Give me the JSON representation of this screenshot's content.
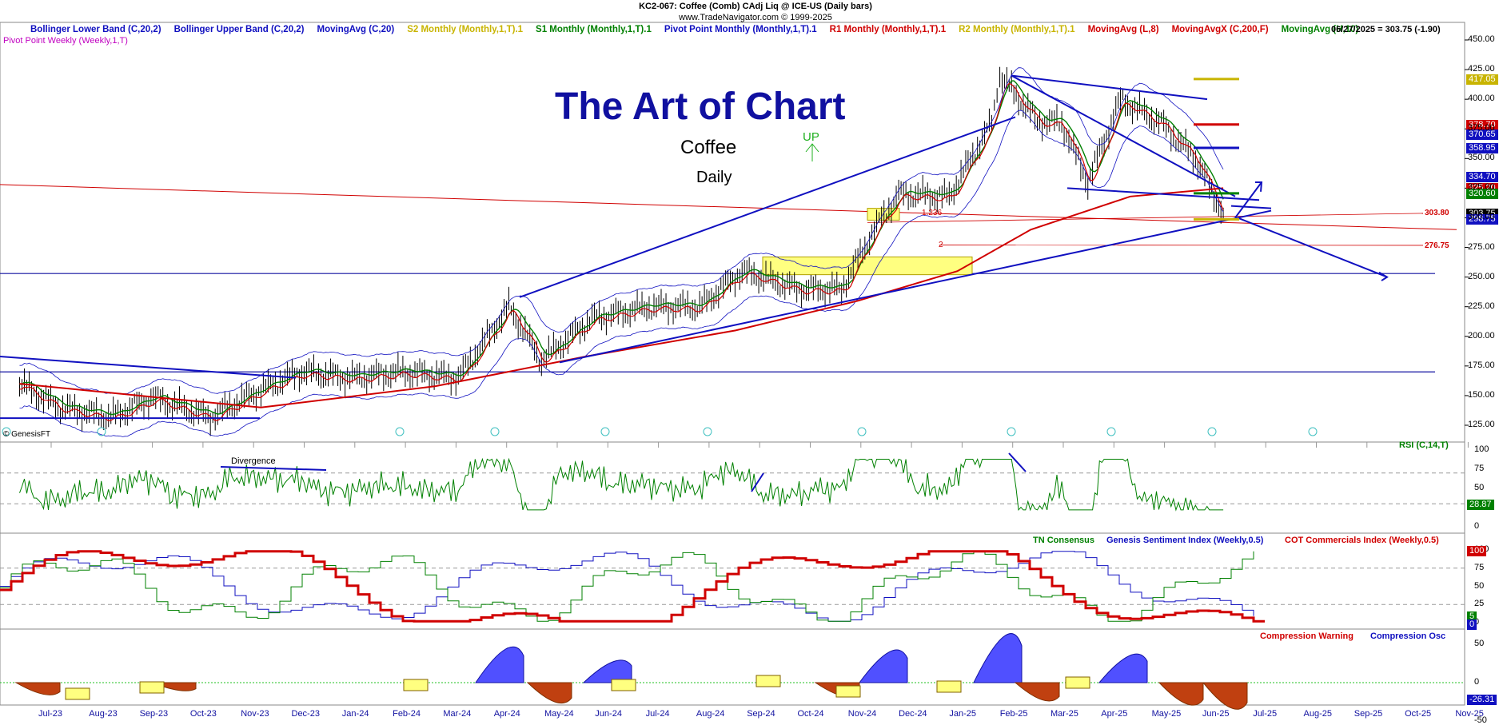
{
  "header": {
    "line1": "KC2-067:  Coffee (Comb) CAdj Liq @ ICE-US  (Daily bars)",
    "line2": "www.TradeNavigator.com © 1999-2025",
    "quote": "06/27/2025 = 303.75 (-1.90)"
  },
  "indicators": [
    {
      "label": "Bollinger Lower Band (C,20,2)",
      "color": "#1010c0"
    },
    {
      "label": "Bollinger Upper Band (C,20,2)",
      "color": "#1010c0"
    },
    {
      "label": "MovingAvg (C,20)",
      "color": "#1010c0"
    },
    {
      "label": "S2 Monthly (Monthly,1,T).1",
      "color": "#c8b400"
    },
    {
      "label": "S1 Monthly (Monthly,1,T).1",
      "color": "#008000"
    },
    {
      "label": "Pivot Point Monthly (Monthly,1,T).1",
      "color": "#1010c0"
    },
    {
      "label": "R1 Monthly (Monthly,1,T).1",
      "color": "#d00000"
    },
    {
      "label": "R2 Monthly (Monthly,1,T).1",
      "color": "#c8b400"
    },
    {
      "label": "MovingAvg (L,8)",
      "color": "#d00000"
    },
    {
      "label": "MovingAvgX (C,200,F)",
      "color": "#d00000"
    },
    {
      "label": "MovingAvg (H,10)",
      "color": "#008000"
    }
  ],
  "indicator_row2": {
    "label": "Pivot Point Weekly (Weekly,1,T)",
    "color": "#c000c0"
  },
  "title": "The Art of Chart",
  "subtitle": "Coffee",
  "timeframe": "Daily",
  "annotations": {
    "up": "UP",
    "divergence": "Divergence",
    "copyright": "© GenesisFT",
    "fib_1236": "1.236",
    "fib_2": "2",
    "line_303": "303.80",
    "line_276": "276.75"
  },
  "price_badges": [
    {
      "text": "417.05",
      "bg": "#c8b400",
      "fg": "#fff"
    },
    {
      "text": "378.70",
      "bg": "#d00000",
      "fg": "#fff"
    },
    {
      "text": "370.65",
      "bg": "#1010c0",
      "fg": "#fff"
    },
    {
      "text": "358.95",
      "bg": "#1010c0",
      "fg": "#fff"
    },
    {
      "text": "334.70",
      "bg": "#1010c0",
      "fg": "#fff"
    },
    {
      "text": "325.20",
      "bg": "#d00000",
      "fg": "#fff"
    },
    {
      "text": "320.60",
      "bg": "#008000",
      "fg": "#fff"
    },
    {
      "text": "303.75",
      "bg": "#000000",
      "fg": "#fff"
    },
    {
      "text": "298.75",
      "bg": "#1010c0",
      "fg": "#fff"
    }
  ],
  "panels": {
    "rsi": {
      "label": "RSI (C,14,T)",
      "value": "28.87",
      "color": "#008000"
    },
    "sentiment": {
      "labels": [
        {
          "text": "TN Consensus",
          "color": "#008000"
        },
        {
          "text": "Genesis Sentiment Index (Weekly,0.5)",
          "color": "#1010c0"
        },
        {
          "text": "COT Commercials Index (Weekly,0.5)",
          "color": "#d00000"
        }
      ],
      "value_red": "100",
      "value_green": "5",
      "value_blue": "0"
    },
    "compression": {
      "labels": [
        {
          "text": "Compression Warning",
          "color": "#d00000"
        },
        {
          "text": "Compression Osc",
          "color": "#1010c0"
        }
      ],
      "value": "-26.31"
    }
  },
  "chart_data": {
    "type": "candlestick",
    "symbol": "KC2-067",
    "x_tick_labels": [
      "Jul-23",
      "Aug-23",
      "Sep-23",
      "Oct-23",
      "Nov-23",
      "Dec-23",
      "Jan-24",
      "Feb-24",
      "Mar-24",
      "Apr-24",
      "May-24",
      "Jun-24",
      "Jul-24",
      "Aug-24",
      "Sep-24",
      "Oct-24",
      "Nov-24",
      "Dec-24",
      "Jan-25",
      "Feb-25",
      "Mar-25",
      "Apr-25",
      "May-25",
      "Jun-25",
      "Jul-25",
      "Aug-25",
      "Sep-25",
      "Oct-25",
      "Nov-25"
    ],
    "price_ticks": [
      450,
      425,
      400,
      375,
      350,
      325,
      300,
      275,
      250,
      225,
      200,
      175,
      150,
      125
    ],
    "price_ylim": [
      112,
      458
    ],
    "rsi_ticks": [
      100,
      75,
      50,
      25,
      0
    ],
    "sentiment_ticks": [
      100,
      75,
      50,
      25,
      0
    ],
    "compression_ticks": [
      50,
      0,
      -50
    ],
    "close_series": {
      "dates": [
        "2023-06-20",
        "2023-07-15",
        "2023-08-15",
        "2023-09-10",
        "2023-10-15",
        "2023-11-15",
        "2023-12-10",
        "2024-01-10",
        "2024-02-10",
        "2024-03-15",
        "2024-04-15",
        "2024-05-05",
        "2024-06-05",
        "2024-07-10",
        "2024-08-10",
        "2024-09-05",
        "2024-10-10",
        "2024-11-05",
        "2024-11-25",
        "2024-12-10",
        "2025-01-10",
        "2025-02-05",
        "2025-02-10",
        "2025-03-05",
        "2025-03-20",
        "2025-04-05",
        "2025-04-25",
        "2025-05-20",
        "2025-06-10",
        "2025-06-27"
      ],
      "close": [
        160,
        140,
        132,
        148,
        132,
        155,
        170,
        165,
        170,
        165,
        225,
        180,
        215,
        225,
        225,
        255,
        240,
        240,
        290,
        320,
        318,
        380,
        420,
        382,
        380,
        330,
        400,
        380,
        350,
        303.75
      ]
    },
    "ma200": {
      "dates": [
        "2023-06-20",
        "2023-09-01",
        "2023-11-15",
        "2024-03-01",
        "2024-06-01",
        "2024-09-01",
        "2024-11-15",
        "2025-01-15",
        "2025-03-01",
        "2025-05-01",
        "2025-06-27"
      ],
      "values": [
        160,
        150,
        140,
        158,
        183,
        205,
        230,
        255,
        290,
        318,
        325
      ]
    },
    "levels": [
      303.8,
      276.75,
      250,
      170
    ]
  }
}
